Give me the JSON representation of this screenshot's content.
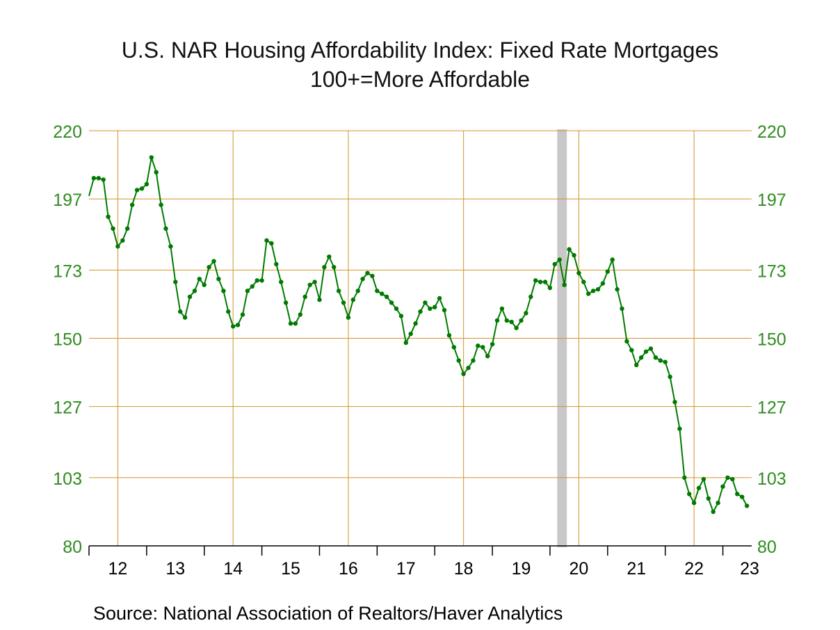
{
  "chart_data": {
    "type": "line",
    "title": "U.S. NAR Housing Affordability Index: Fixed Rate Mortgages",
    "subtitle": "100+=More Affordable",
    "source": "Source:  National Association of Realtors/Haver Analytics",
    "ylim": [
      80,
      220
    ],
    "y_ticks": [
      80,
      103,
      127,
      150,
      173,
      197,
      220
    ],
    "x_tick_labels": [
      "12",
      "13",
      "14",
      "15",
      "16",
      "17",
      "18",
      "19",
      "20",
      "21",
      "22",
      "23"
    ],
    "x_domain": [
      2011.5,
      2023.0
    ],
    "grid": true,
    "recession_band": {
      "x_start": 2019.625,
      "x_end": 2019.792
    },
    "colors": {
      "line": "#007a00",
      "axis_text": "#2e8b1e",
      "grid": "#d4922a",
      "recession": "#c8c8c8"
    },
    "series": [
      {
        "start": 2011.5,
        "step": 0.08333,
        "values": [
          198,
          204,
          204,
          203.5,
          191,
          187,
          181,
          183,
          187,
          195,
          200,
          200.5,
          202,
          211,
          206,
          195,
          187,
          181,
          169,
          159,
          157,
          164,
          166,
          170,
          168,
          174,
          176,
          170,
          166,
          159,
          154,
          154.5,
          158,
          166,
          167.5,
          169.5,
          169.5,
          183,
          182,
          175,
          169,
          162,
          155,
          155,
          158,
          164,
          168,
          169,
          163,
          174,
          177.5,
          174,
          166,
          162,
          157,
          163,
          166,
          170,
          172,
          171,
          166,
          165,
          164,
          162,
          160,
          157.5,
          148.5,
          151.5,
          155,
          159,
          162,
          160,
          160.5,
          163.5,
          159.5,
          151,
          147,
          142.5,
          138,
          140,
          142.5,
          147.5,
          147,
          144,
          148,
          156,
          160,
          156,
          155.5,
          153.5,
          156,
          158.5,
          164,
          169.5,
          169,
          169,
          167,
          175,
          176.5,
          168,
          180,
          178,
          172,
          169,
          165,
          166,
          166.5,
          168.5,
          172.5,
          176.5,
          166.5,
          160,
          149,
          146,
          141,
          143.5,
          145.5,
          146.5,
          143.5,
          142.5,
          142,
          137,
          128.5,
          119.5,
          103,
          97.5,
          94.5,
          99.5,
          102.5,
          96,
          91.5,
          94.5,
          100,
          103,
          102.5,
          97.5,
          96.5,
          93.5
        ]
      }
    ]
  }
}
